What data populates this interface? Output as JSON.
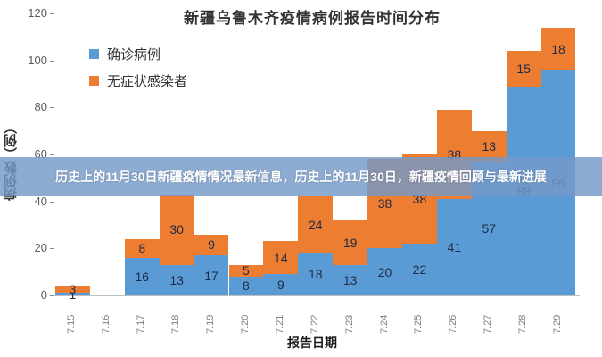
{
  "chart_data": {
    "type": "bar",
    "stacked": true,
    "title": "新疆乌鲁木齐疫情病例报告时间分布",
    "xlabel": "报告日期",
    "ylabel": "病例数（例）",
    "ylim": [
      0,
      120
    ],
    "yticks": [
      0,
      20,
      40,
      60,
      80,
      100,
      120
    ],
    "grid": false,
    "legend_position": "top-left",
    "categories": [
      "7.15",
      "7.16",
      "7.17",
      "7.18",
      "7.19",
      "7.20",
      "7.21",
      "7.22",
      "7.23",
      "7.24",
      "7.25",
      "7.26",
      "7.27",
      "7.28",
      "7.29"
    ],
    "series": [
      {
        "name": "确诊病例",
        "color": "#5b9bd5",
        "values": [
          1,
          0,
          16,
          13,
          17,
          8,
          9,
          18,
          13,
          20,
          22,
          41,
          57,
          89,
          96
        ]
      },
      {
        "name": "无症状感染者",
        "color": "#ed7d31",
        "values": [
          3,
          0,
          8,
          30,
          9,
          5,
          14,
          24,
          19,
          38,
          38,
          38,
          13,
          15,
          18
        ]
      }
    ]
  },
  "banner": {
    "text": "历史上的11月30日新疆疫情情况最新信息，历史上的11月30日，新疆疫情回顾与最新进展"
  }
}
